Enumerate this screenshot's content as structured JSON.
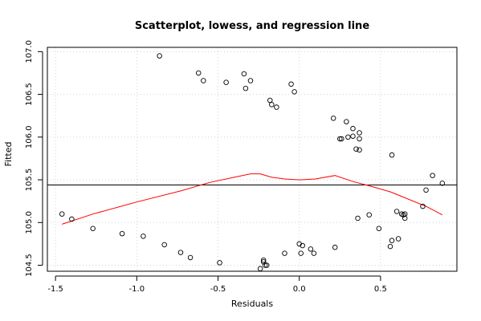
{
  "chart_data": {
    "type": "scatter",
    "title": "Scatterplot, lowess, and regression line",
    "xlabel": "Residuals",
    "ylabel": "Fitted",
    "xlim": [
      -1.55,
      0.97
    ],
    "ylim": [
      104.43,
      107.05
    ],
    "grid": true,
    "x_ticks": [
      -1.5,
      -1.0,
      -0.5,
      0.0,
      0.5
    ],
    "x_tick_labels": [
      "-1.5",
      "-1.0",
      "-0.5",
      "0.0",
      "0.5"
    ],
    "y_ticks": [
      104.5,
      105.0,
      105.5,
      106.0,
      106.5,
      107.0
    ],
    "y_tick_labels": [
      "104.5",
      "105.0",
      "105.5",
      "106.0",
      "106.5",
      "107.0"
    ],
    "points": [
      {
        "x": -1.46,
        "y": 105.1
      },
      {
        "x": -1.4,
        "y": 105.04
      },
      {
        "x": -1.27,
        "y": 104.93
      },
      {
        "x": -1.09,
        "y": 104.87
      },
      {
        "x": -0.96,
        "y": 104.84
      },
      {
        "x": -0.83,
        "y": 104.74
      },
      {
        "x": -0.73,
        "y": 104.65
      },
      {
        "x": -0.67,
        "y": 104.59
      },
      {
        "x": -0.49,
        "y": 104.53
      },
      {
        "x": -0.86,
        "y": 106.95
      },
      {
        "x": -0.62,
        "y": 106.75
      },
      {
        "x": -0.59,
        "y": 106.66
      },
      {
        "x": -0.45,
        "y": 106.64
      },
      {
        "x": -0.34,
        "y": 106.74
      },
      {
        "x": -0.3,
        "y": 106.66
      },
      {
        "x": -0.33,
        "y": 106.57
      },
      {
        "x": -0.18,
        "y": 106.43
      },
      {
        "x": -0.17,
        "y": 106.38
      },
      {
        "x": -0.14,
        "y": 106.35
      },
      {
        "x": -0.05,
        "y": 106.62
      },
      {
        "x": -0.03,
        "y": 106.53
      },
      {
        "x": -0.22,
        "y": 104.54
      },
      {
        "x": -0.22,
        "y": 104.56
      },
      {
        "x": -0.21,
        "y": 104.5
      },
      {
        "x": -0.2,
        "y": 104.5
      },
      {
        "x": -0.24,
        "y": 104.46
      },
      {
        "x": -0.09,
        "y": 104.64
      },
      {
        "x": 0.0,
        "y": 104.75
      },
      {
        "x": 0.02,
        "y": 104.73
      },
      {
        "x": 0.01,
        "y": 104.64
      },
      {
        "x": 0.07,
        "y": 104.69
      },
      {
        "x": 0.09,
        "y": 104.64
      },
      {
        "x": 0.22,
        "y": 104.71
      },
      {
        "x": 0.21,
        "y": 106.22
      },
      {
        "x": 0.25,
        "y": 105.98
      },
      {
        "x": 0.26,
        "y": 105.98
      },
      {
        "x": 0.29,
        "y": 106.18
      },
      {
        "x": 0.3,
        "y": 106.0
      },
      {
        "x": 0.33,
        "y": 106.1
      },
      {
        "x": 0.33,
        "y": 106.01
      },
      {
        "x": 0.35,
        "y": 105.86
      },
      {
        "x": 0.37,
        "y": 105.85
      },
      {
        "x": 0.37,
        "y": 106.05
      },
      {
        "x": 0.37,
        "y": 105.98
      },
      {
        "x": 0.36,
        "y": 105.05
      },
      {
        "x": 0.43,
        "y": 105.09
      },
      {
        "x": 0.49,
        "y": 104.93
      },
      {
        "x": 0.56,
        "y": 104.72
      },
      {
        "x": 0.57,
        "y": 104.79
      },
      {
        "x": 0.61,
        "y": 104.81
      },
      {
        "x": 0.57,
        "y": 105.79
      },
      {
        "x": 0.6,
        "y": 105.13
      },
      {
        "x": 0.63,
        "y": 105.1
      },
      {
        "x": 0.64,
        "y": 105.09
      },
      {
        "x": 0.65,
        "y": 105.05
      },
      {
        "x": 0.65,
        "y": 105.1
      },
      {
        "x": 0.76,
        "y": 105.19
      },
      {
        "x": 0.78,
        "y": 105.38
      },
      {
        "x": 0.82,
        "y": 105.55
      },
      {
        "x": 0.88,
        "y": 105.46
      }
    ],
    "regression_line": {
      "intercept": 105.44,
      "slope": 0.0,
      "color": "#000000"
    },
    "lowess_line": {
      "color": "#ff0000",
      "points": [
        {
          "x": -1.46,
          "y": 104.98
        },
        {
          "x": -1.27,
          "y": 105.1
        },
        {
          "x": -1.0,
          "y": 105.24
        },
        {
          "x": -0.73,
          "y": 105.37
        },
        {
          "x": -0.55,
          "y": 105.47
        },
        {
          "x": -0.4,
          "y": 105.53
        },
        {
          "x": -0.3,
          "y": 105.57
        },
        {
          "x": -0.24,
          "y": 105.57
        },
        {
          "x": -0.17,
          "y": 105.53
        },
        {
          "x": -0.09,
          "y": 105.51
        },
        {
          "x": 0.0,
          "y": 105.5
        },
        {
          "x": 0.1,
          "y": 105.51
        },
        {
          "x": 0.22,
          "y": 105.55
        },
        {
          "x": 0.33,
          "y": 105.48
        },
        {
          "x": 0.43,
          "y": 105.43
        },
        {
          "x": 0.56,
          "y": 105.36
        },
        {
          "x": 0.65,
          "y": 105.29
        },
        {
          "x": 0.78,
          "y": 105.19
        },
        {
          "x": 0.88,
          "y": 105.09
        }
      ]
    }
  }
}
